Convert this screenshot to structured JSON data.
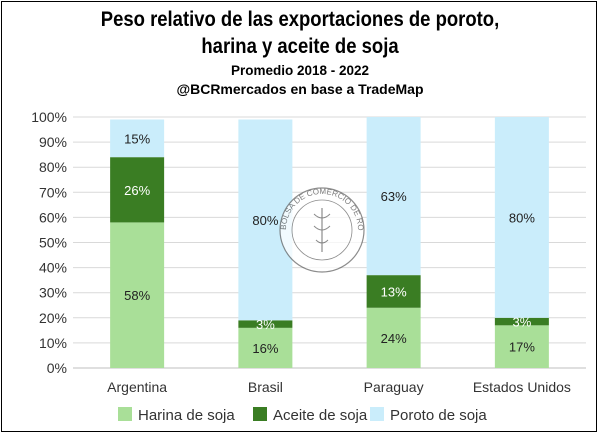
{
  "chart_data": {
    "type": "stacked-bar",
    "title": "Peso relativo de las exportaciones de poroto,",
    "title_line2": "harina y aceite de soja",
    "subtitle": "Promedio 2018 - 2022",
    "source": "@BCRmercados en base a TradeMap",
    "categories": [
      "Argentina",
      "Brasil",
      "Paraguay",
      "Estados Unidos"
    ],
    "series": [
      {
        "name": "Harina de soja",
        "color": "#A9DF98",
        "values": [
          58,
          16,
          24,
          17
        ],
        "labels": [
          "58%",
          "16%",
          "24%",
          "17%"
        ]
      },
      {
        "name": "Aceite de soja",
        "color": "#3A7D23",
        "values": [
          26,
          3,
          13,
          3
        ],
        "labels": [
          "26%",
          "3%",
          "13%",
          "3%"
        ]
      },
      {
        "name": "Poroto de soja",
        "color": "#CAEDFB",
        "values": [
          15,
          80,
          63,
          80
        ],
        "labels": [
          "15%",
          "80%",
          "63%",
          "80%"
        ]
      }
    ],
    "ylim": [
      0,
      100
    ],
    "yticks": [
      "0%",
      "10%",
      "20%",
      "30%",
      "40%",
      "50%",
      "60%",
      "70%",
      "80%",
      "90%",
      "100%"
    ],
    "watermark": "BOLSA DE COMERCIO DE ROSARIO"
  }
}
